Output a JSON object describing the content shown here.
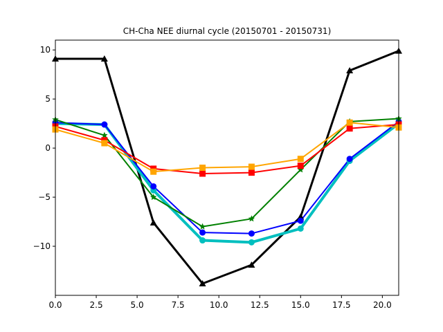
{
  "chart_data": {
    "type": "line",
    "title": "CH-Cha NEE diurnal cycle (20150701 - 20150731)",
    "xlabel": "",
    "ylabel": "",
    "xlim": [
      0,
      21
    ],
    "ylim": [
      -15,
      11
    ],
    "xticks": [
      0.0,
      2.5,
      5.0,
      7.5,
      10.0,
      12.5,
      15.0,
      17.5,
      20.0
    ],
    "xtick_labels": [
      "0.0",
      "2.5",
      "5.0",
      "7.5",
      "10.0",
      "12.5",
      "15.0",
      "17.5",
      "20.0"
    ],
    "yticks": [
      10,
      5,
      0,
      -5,
      -10
    ],
    "ytick_labels": [
      "10",
      "5",
      "0",
      "−5",
      "−10"
    ],
    "grid": false,
    "x": [
      0,
      3,
      6,
      9,
      12,
      15,
      18,
      21
    ],
    "series": [
      {
        "color": "#000000",
        "marker": "triangle",
        "linewidth": 3,
        "values": [
          9.1,
          9.1,
          -7.6,
          -13.8,
          -11.9,
          -7.0,
          7.9,
          9.9
        ]
      },
      {
        "color": "#00bfbf",
        "marker": "circle",
        "linewidth": 4,
        "values": [
          2.5,
          2.4,
          -4.3,
          -9.4,
          -9.6,
          -8.2,
          -1.3,
          2.5
        ]
      },
      {
        "color": "#0000ff",
        "marker": "circle",
        "linewidth": 2,
        "values": [
          2.6,
          2.4,
          -3.9,
          -8.6,
          -8.7,
          -7.4,
          -1.1,
          2.7
        ]
      },
      {
        "color": "#008000",
        "marker": "star",
        "linewidth": 2,
        "values": [
          2.9,
          1.3,
          -5.0,
          -8.0,
          -7.2,
          -2.2,
          2.7,
          3.0
        ]
      },
      {
        "color": "#ff0000",
        "marker": "square",
        "linewidth": 2,
        "values": [
          2.2,
          0.8,
          -2.1,
          -2.6,
          -2.5,
          -1.8,
          2.0,
          2.4
        ]
      },
      {
        "color": "#ffa500",
        "marker": "square",
        "linewidth": 2,
        "values": [
          1.9,
          0.5,
          -2.4,
          -2.0,
          -1.9,
          -1.1,
          2.6,
          2.1
        ]
      }
    ]
  }
}
